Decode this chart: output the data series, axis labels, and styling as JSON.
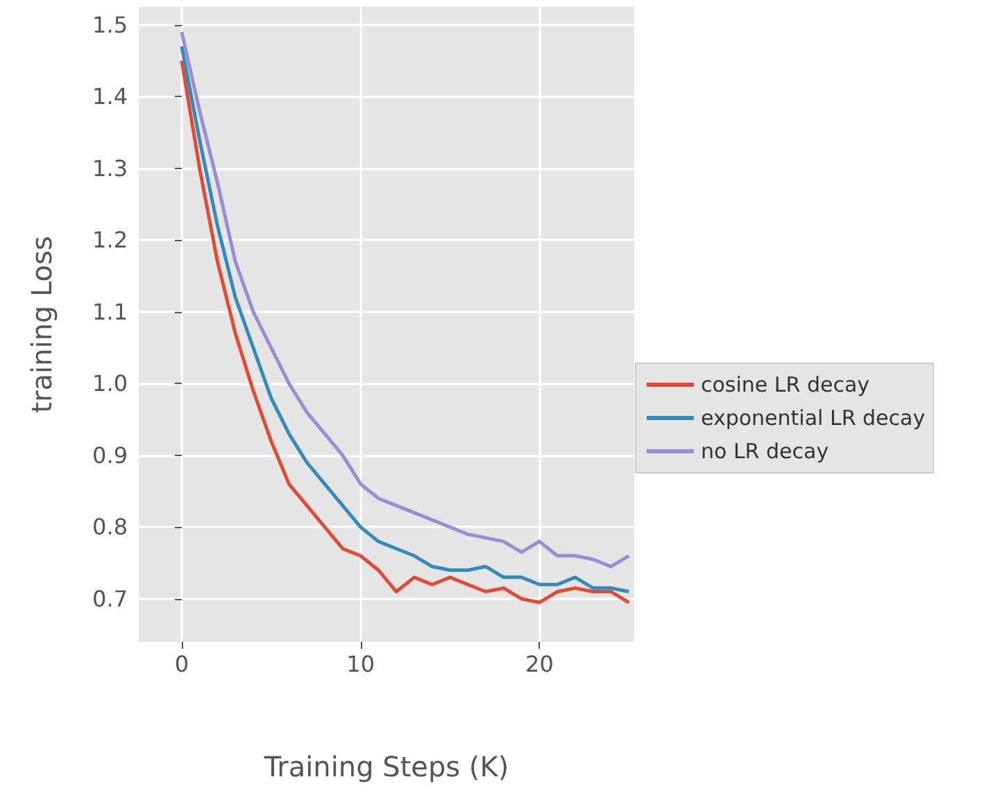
{
  "chart_data": {
    "type": "line",
    "xlabel": "Training Steps (K)",
    "ylabel": "training Loss",
    "x": [
      0,
      1,
      2,
      3,
      4,
      5,
      6,
      7,
      8,
      9,
      10,
      11,
      12,
      13,
      14,
      15,
      16,
      17,
      18,
      19,
      20,
      21,
      22,
      23,
      24,
      25
    ],
    "series": [
      {
        "name": "cosine LR decay",
        "color": "#e24a33",
        "values": [
          1.45,
          1.3,
          1.17,
          1.07,
          0.99,
          0.92,
          0.86,
          0.83,
          0.8,
          0.77,
          0.76,
          0.74,
          0.71,
          0.73,
          0.72,
          0.73,
          0.72,
          0.71,
          0.715,
          0.7,
          0.695,
          0.71,
          0.715,
          0.71,
          0.71,
          0.695
        ]
      },
      {
        "name": "exponential LR decay",
        "color": "#348abd",
        "values": [
          1.47,
          1.34,
          1.22,
          1.12,
          1.05,
          0.98,
          0.93,
          0.89,
          0.86,
          0.83,
          0.8,
          0.78,
          0.77,
          0.76,
          0.745,
          0.74,
          0.74,
          0.745,
          0.73,
          0.73,
          0.72,
          0.72,
          0.73,
          0.715,
          0.715,
          0.71
        ]
      },
      {
        "name": "no LR decay",
        "color": "#988ed5",
        "values": [
          1.49,
          1.38,
          1.28,
          1.17,
          1.1,
          1.05,
          1.0,
          0.96,
          0.93,
          0.9,
          0.86,
          0.84,
          0.83,
          0.82,
          0.81,
          0.8,
          0.79,
          0.785,
          0.78,
          0.765,
          0.78,
          0.76,
          0.76,
          0.755,
          0.745,
          0.76
        ]
      }
    ],
    "xlim": [
      -2.4,
      25.3
    ],
    "xticks": [
      0,
      10,
      20
    ],
    "ylim": [
      0.64,
      1.525
    ],
    "yticks": [
      0.7,
      0.8,
      0.9,
      {
        "value": 1.0,
        "label": "1.0"
      },
      1.1,
      1.2,
      1.3,
      1.4,
      1.5
    ],
    "grid": true,
    "legend": "right",
    "marker": "none",
    "line_style": "solid"
  }
}
